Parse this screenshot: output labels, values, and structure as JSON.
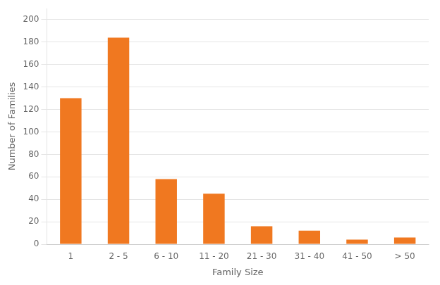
{
  "chart_data": {
    "type": "bar",
    "categories": [
      "1",
      "2 - 5",
      "6 - 10",
      "11 - 20",
      "21 - 30",
      "31 - 40",
      "41 - 50",
      "> 50"
    ],
    "values": [
      130,
      184,
      58,
      45,
      16,
      12,
      4,
      6
    ],
    "color": "#F07820",
    "xlabel": "Family Size",
    "ylabel": "Number of Families",
    "ylim": [
      0,
      210
    ],
    "yticks": [
      0,
      20,
      40,
      60,
      80,
      100,
      120,
      140,
      160,
      180,
      200
    ],
    "grid": true
  }
}
